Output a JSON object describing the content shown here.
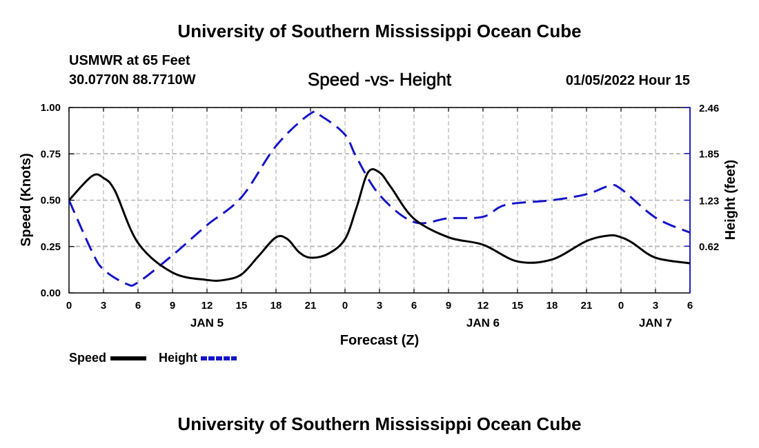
{
  "header": {
    "title": "University of Southern Mississippi Ocean Cube",
    "station": "USMWR at 65 Feet",
    "coords": "30.0770N  88.7710W",
    "subtitle": "Speed -vs- Height",
    "datetime": "01/05/2022 Hour 15"
  },
  "footer": {
    "title": "University of Southern Mississippi Ocean Cube"
  },
  "chart_data": {
    "type": "line",
    "title": "Speed -vs- Height",
    "xlabel": "Forecast (Z)",
    "ylabel_left": "Speed (Knots)",
    "ylabel_right": "Height (feet)",
    "x_hours_range": [
      0,
      54
    ],
    "x_ticks": [
      {
        "h": 0,
        "label": "0"
      },
      {
        "h": 3,
        "label": "3"
      },
      {
        "h": 6,
        "label": "6"
      },
      {
        "h": 9,
        "label": "9"
      },
      {
        "h": 12,
        "label": "12"
      },
      {
        "h": 15,
        "label": "15"
      },
      {
        "h": 18,
        "label": "18"
      },
      {
        "h": 21,
        "label": "21"
      },
      {
        "h": 24,
        "label": "0"
      },
      {
        "h": 27,
        "label": "3"
      },
      {
        "h": 30,
        "label": "6"
      },
      {
        "h": 33,
        "label": "9"
      },
      {
        "h": 36,
        "label": "12"
      },
      {
        "h": 39,
        "label": "15"
      },
      {
        "h": 42,
        "label": "18"
      },
      {
        "h": 45,
        "label": "21"
      },
      {
        "h": 48,
        "label": "0"
      },
      {
        "h": 51,
        "label": "3"
      },
      {
        "h": 54,
        "label": "6"
      }
    ],
    "day_labels": [
      {
        "h": 12,
        "label": "JAN 5"
      },
      {
        "h": 36,
        "label": "JAN 6"
      },
      {
        "h": 51,
        "label": "JAN 7"
      }
    ],
    "ylim_left": [
      0,
      1
    ],
    "yticks_left": [
      "0.00",
      "0.25",
      "0.50",
      "0.75",
      "1.00"
    ],
    "ylim_right": [
      0,
      2.46
    ],
    "yticks_right": [
      {
        "v": 0.62,
        "label": "0.62"
      },
      {
        "v": 1.23,
        "label": "1.23"
      },
      {
        "v": 1.85,
        "label": "1.85"
      },
      {
        "v": 2.46,
        "label": "2.46"
      }
    ],
    "grid": true,
    "legend": [
      "Speed",
      "Height"
    ],
    "series": [
      {
        "name": "Speed",
        "axis": "left",
        "color": "#000000",
        "style": "solid",
        "x": [
          0,
          2,
          3,
          4,
          6,
          9,
          12,
          13.5,
          15,
          16.5,
          18,
          19,
          20,
          21,
          22.5,
          24,
          25,
          26,
          27,
          28,
          30,
          33,
          36,
          39,
          42,
          45,
          47,
          48,
          49,
          51,
          54
        ],
        "values": [
          0.5,
          0.63,
          0.62,
          0.55,
          0.27,
          0.11,
          0.07,
          0.07,
          0.1,
          0.2,
          0.3,
          0.29,
          0.22,
          0.19,
          0.21,
          0.29,
          0.46,
          0.65,
          0.65,
          0.57,
          0.4,
          0.3,
          0.26,
          0.17,
          0.18,
          0.28,
          0.31,
          0.3,
          0.27,
          0.19,
          0.16
        ]
      },
      {
        "name": "Height",
        "axis": "right",
        "color": "#1414c8",
        "style": "dashed",
        "x": [
          0,
          2,
          3,
          5,
          6,
          9,
          12,
          15,
          18,
          21,
          22,
          24,
          25,
          27,
          30,
          33,
          36,
          38,
          42,
          45,
          47,
          48,
          51,
          54
        ],
        "values": [
          1.23,
          0.55,
          0.31,
          0.12,
          0.14,
          0.5,
          0.9,
          1.27,
          1.95,
          2.38,
          2.34,
          2.1,
          1.8,
          1.3,
          0.94,
          0.99,
          1.01,
          1.17,
          1.23,
          1.31,
          1.42,
          1.38,
          1.0,
          0.8
        ]
      }
    ]
  }
}
